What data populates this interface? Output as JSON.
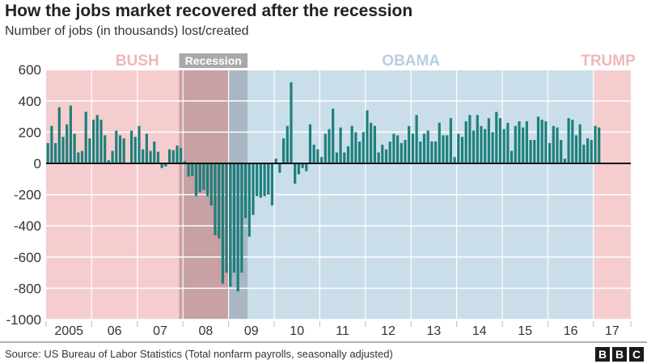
{
  "chart_data": {
    "type": "bar",
    "title": "How the jobs market recovered after the recession",
    "subtitle": "Number of jobs (in thousands) lost/created",
    "xlabel": "",
    "ylabel": "",
    "ylim": [
      -1000,
      600
    ],
    "y_ticks": [
      "600",
      "400",
      "200",
      "0",
      "-200",
      "-400",
      "-600",
      "-800",
      "-1000"
    ],
    "x_tick_labels": [
      "2005",
      "06",
      "07",
      "08",
      "09",
      "10",
      "11",
      "12",
      "13",
      "14",
      "15",
      "16",
      "17"
    ],
    "grid": true,
    "bar_color": "#1d807c",
    "frequency": "monthly",
    "values_by_year": {
      "2005": [
        130,
        240,
        130,
        360,
        170,
        250,
        370,
        190,
        70,
        80,
        330,
        160
      ],
      "2006": [
        280,
        310,
        280,
        180,
        20,
        80,
        210,
        180,
        160,
        5,
        210,
        170
      ],
      "2007": [
        240,
        90,
        190,
        80,
        140,
        75,
        -30,
        -20,
        90,
        85,
        115,
        100
      ],
      "2008": [
        15,
        -85,
        -80,
        -210,
        -185,
        -170,
        -210,
        -270,
        -460,
        -480,
        -770,
        -700
      ],
      "2009": [
        -790,
        -700,
        -820,
        -700,
        -350,
        -470,
        -330,
        -210,
        -220,
        -210,
        -200,
        -270
      ],
      "2010": [
        30,
        -60,
        160,
        240,
        520,
        -130,
        -70,
        -30,
        -50,
        250,
        120,
        90
      ],
      "2011": [
        40,
        190,
        220,
        350,
        70,
        230,
        70,
        110,
        240,
        200,
        140,
        200
      ],
      "2012": [
        340,
        260,
        240,
        70,
        120,
        90,
        140,
        190,
        180,
        130,
        150,
        240
      ],
      "2013": [
        190,
        310,
        140,
        190,
        210,
        140,
        140,
        260,
        180,
        180,
        290,
        40
      ],
      "2014": [
        190,
        170,
        270,
        310,
        210,
        310,
        240,
        220,
        290,
        200,
        330,
        290
      ],
      "2015": [
        220,
        260,
        80,
        240,
        270,
        230,
        270,
        150,
        150,
        300,
        280,
        270
      ],
      "2016": [
        130,
        240,
        230,
        150,
        30,
        290,
        280,
        180,
        250,
        120,
        160,
        150
      ],
      "2017": [
        240,
        230
      ]
    },
    "periods": [
      {
        "label": "BUSH",
        "from": "2005-01",
        "to": "2009-01",
        "color": "#f5cdcf",
        "label_color": "#efb6ba"
      },
      {
        "label": "OBAMA",
        "from": "2009-01",
        "to": "2017-01",
        "color": "#cadeea",
        "label_color": "#b9cfe0"
      },
      {
        "label": "TRUMP",
        "from": "2017-01",
        "to": "2017-11",
        "color": "#f5cdcf",
        "label_color": "#efb6ba"
      }
    ],
    "recession": {
      "label": "Recession",
      "from": "2007-12",
      "to": "2009-06"
    }
  },
  "footer": {
    "source": "Source: US Bureau of Labor Statistics (Total nonfarm payrolls, seasonally adjusted)",
    "logo": [
      "B",
      "B",
      "C"
    ]
  }
}
